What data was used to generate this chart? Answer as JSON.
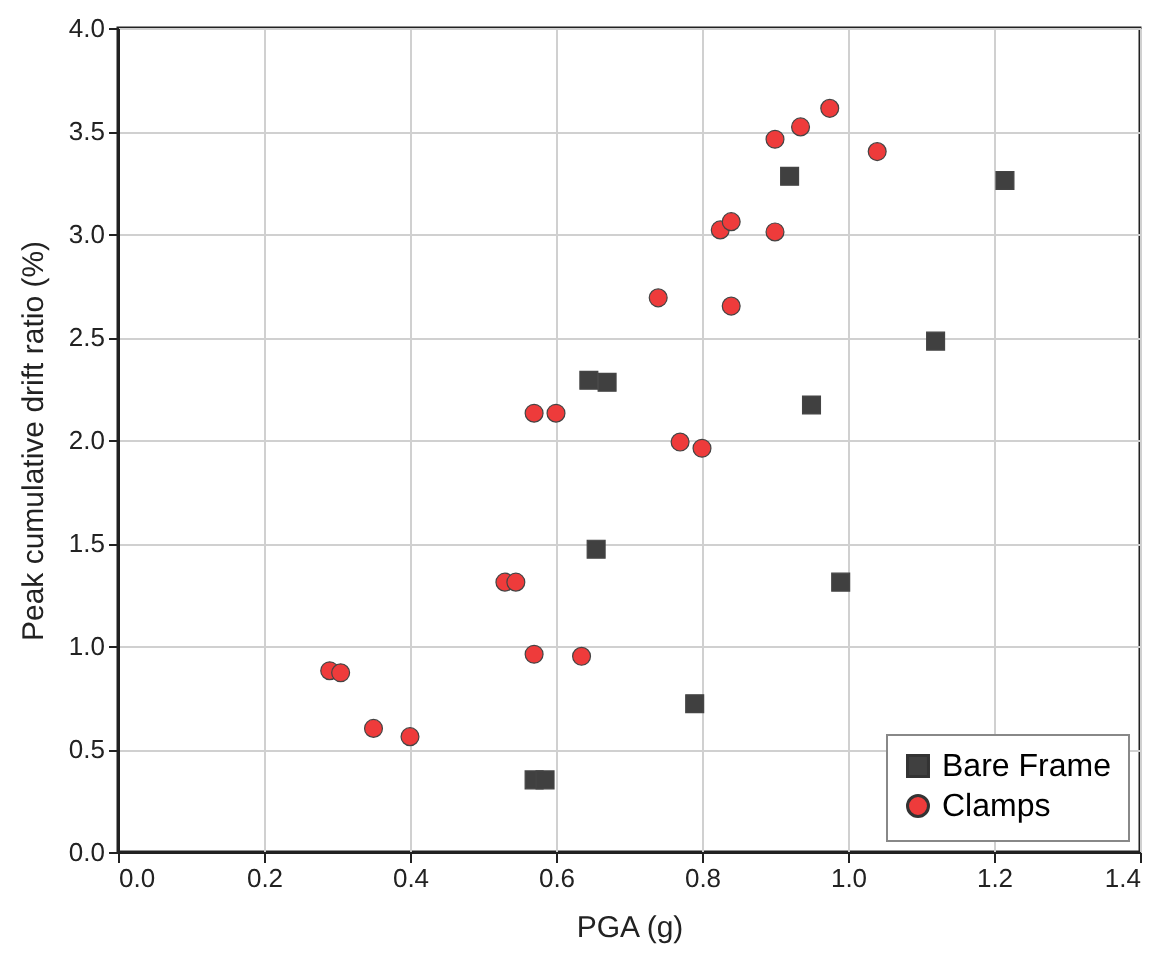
{
  "chart_data": {
    "type": "scatter",
    "xlabel": "PGA (g)",
    "ylabel": "Peak cumulative drift ratio (%)",
    "xlim": [
      0,
      1.4
    ],
    "xticks": [
      {
        "value": 0,
        "label": "0.0"
      },
      0.2,
      0.4,
      0.6,
      0.8,
      {
        "value": 1,
        "label": "1.0"
      },
      1.2,
      1.4
    ],
    "ylim": [
      0,
      4
    ],
    "yticks": [
      {
        "value": 0,
        "label": "0.0"
      },
      0.5,
      {
        "value": 1,
        "label": "1.0"
      },
      1.5,
      {
        "value": 2,
        "label": "2.0"
      },
      2.5,
      {
        "value": 3,
        "label": "3.0"
      },
      3.5,
      {
        "value": 4,
        "label": "4.0"
      }
    ],
    "grid": true,
    "legend": "bottom right",
    "series": [
      {
        "name": "Bare Frame",
        "color": "#404040",
        "marker": "square",
        "x": [
          0.57,
          0.585,
          0.645,
          0.67,
          0.655,
          0.79,
          0.92,
          0.95,
          0.99,
          1.12,
          1.215
        ],
        "values": [
          0.35,
          0.35,
          2.29,
          2.28,
          1.47,
          0.72,
          3.28,
          2.17,
          1.31,
          2.48,
          3.26
        ]
      },
      {
        "name": "Clamps",
        "color": "#ee3b3b",
        "marker": "circle",
        "x": [
          0.29,
          0.305,
          0.35,
          0.4,
          0.53,
          0.545,
          0.57,
          0.635,
          0.57,
          0.6,
          0.74,
          0.77,
          0.8,
          0.825,
          0.84,
          0.84,
          0.9,
          0.9,
          0.935,
          0.975,
          1.04
        ],
        "values": [
          0.88,
          0.87,
          0.6,
          0.56,
          1.31,
          1.31,
          0.96,
          0.95,
          2.13,
          2.13,
          2.69,
          1.99,
          1.96,
          3.02,
          3.06,
          2.65,
          3.46,
          3.01,
          3.52,
          3.61,
          3.4
        ]
      }
    ]
  }
}
